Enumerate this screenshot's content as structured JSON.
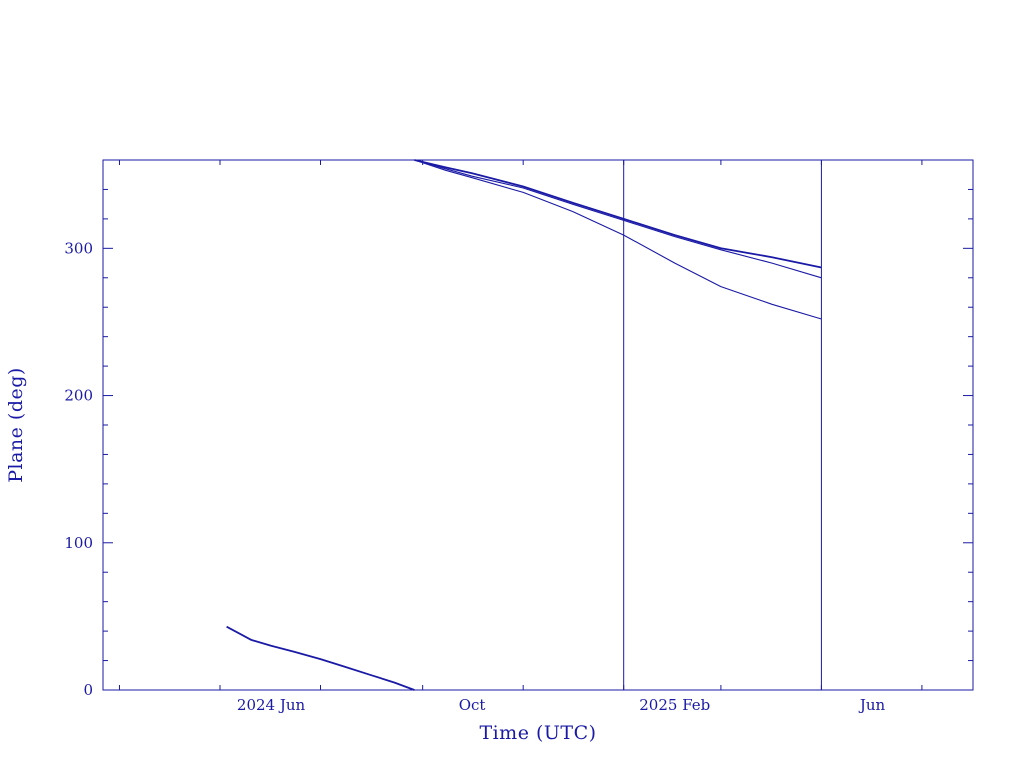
{
  "chart_data": {
    "type": "line",
    "title": "",
    "xlabel": "Time (UTC)",
    "ylabel": "Plane (deg)",
    "x_scale": "time",
    "xlim": [
      "2024-02-20",
      "2025-08-01"
    ],
    "ylim": [
      0,
      360
    ],
    "grid": false,
    "x_tick_labels": [
      {
        "date": "2024-06-01",
        "label": "2024 Jun"
      },
      {
        "date": "2024-10-01",
        "label": "Oct"
      },
      {
        "date": "2025-02-01",
        "label": "2025 Feb"
      },
      {
        "date": "2025-06-01",
        "label": "Jun"
      }
    ],
    "y_ticks": [
      0,
      100,
      200,
      300
    ],
    "vertical_lines": [
      "2025-01-01",
      "2025-05-01"
    ],
    "color": "#1a1aa6",
    "series": [
      {
        "x": [
          "2024-05-05",
          "2024-05-20",
          "2024-06-01",
          "2024-06-15",
          "2024-07-01",
          "2024-07-15",
          "2024-08-01",
          "2024-08-15",
          "2024-08-27"
        ],
        "y": [
          43,
          34,
          30,
          26,
          21,
          16,
          10,
          5,
          0
        ]
      },
      {
        "x": [
          "2024-08-27",
          "2024-09-15",
          "2024-10-01",
          "2024-11-01",
          "2024-12-01",
          "2025-01-01",
          "2025-02-01",
          "2025-03-01",
          "2025-04-01",
          "2025-05-01"
        ],
        "y": [
          360,
          355,
          351,
          342,
          331,
          320,
          309,
          300,
          294,
          287
        ]
      },
      {
        "x": [
          "2024-08-27",
          "2024-09-15",
          "2024-10-01",
          "2024-11-01",
          "2024-12-01",
          "2025-01-01",
          "2025-02-01",
          "2025-03-01",
          "2025-04-01",
          "2025-05-01"
        ],
        "y": [
          360,
          354,
          349,
          341,
          330,
          319,
          308,
          299,
          290,
          280
        ]
      },
      {
        "x": [
          "2024-08-27",
          "2024-09-15",
          "2024-10-01",
          "2024-11-01",
          "2024-12-01",
          "2025-01-01",
          "2025-02-01",
          "2025-03-01",
          "2025-04-01",
          "2025-05-01"
        ],
        "y": [
          360,
          353,
          348,
          338,
          325,
          309,
          290,
          274,
          262,
          252
        ]
      }
    ]
  }
}
